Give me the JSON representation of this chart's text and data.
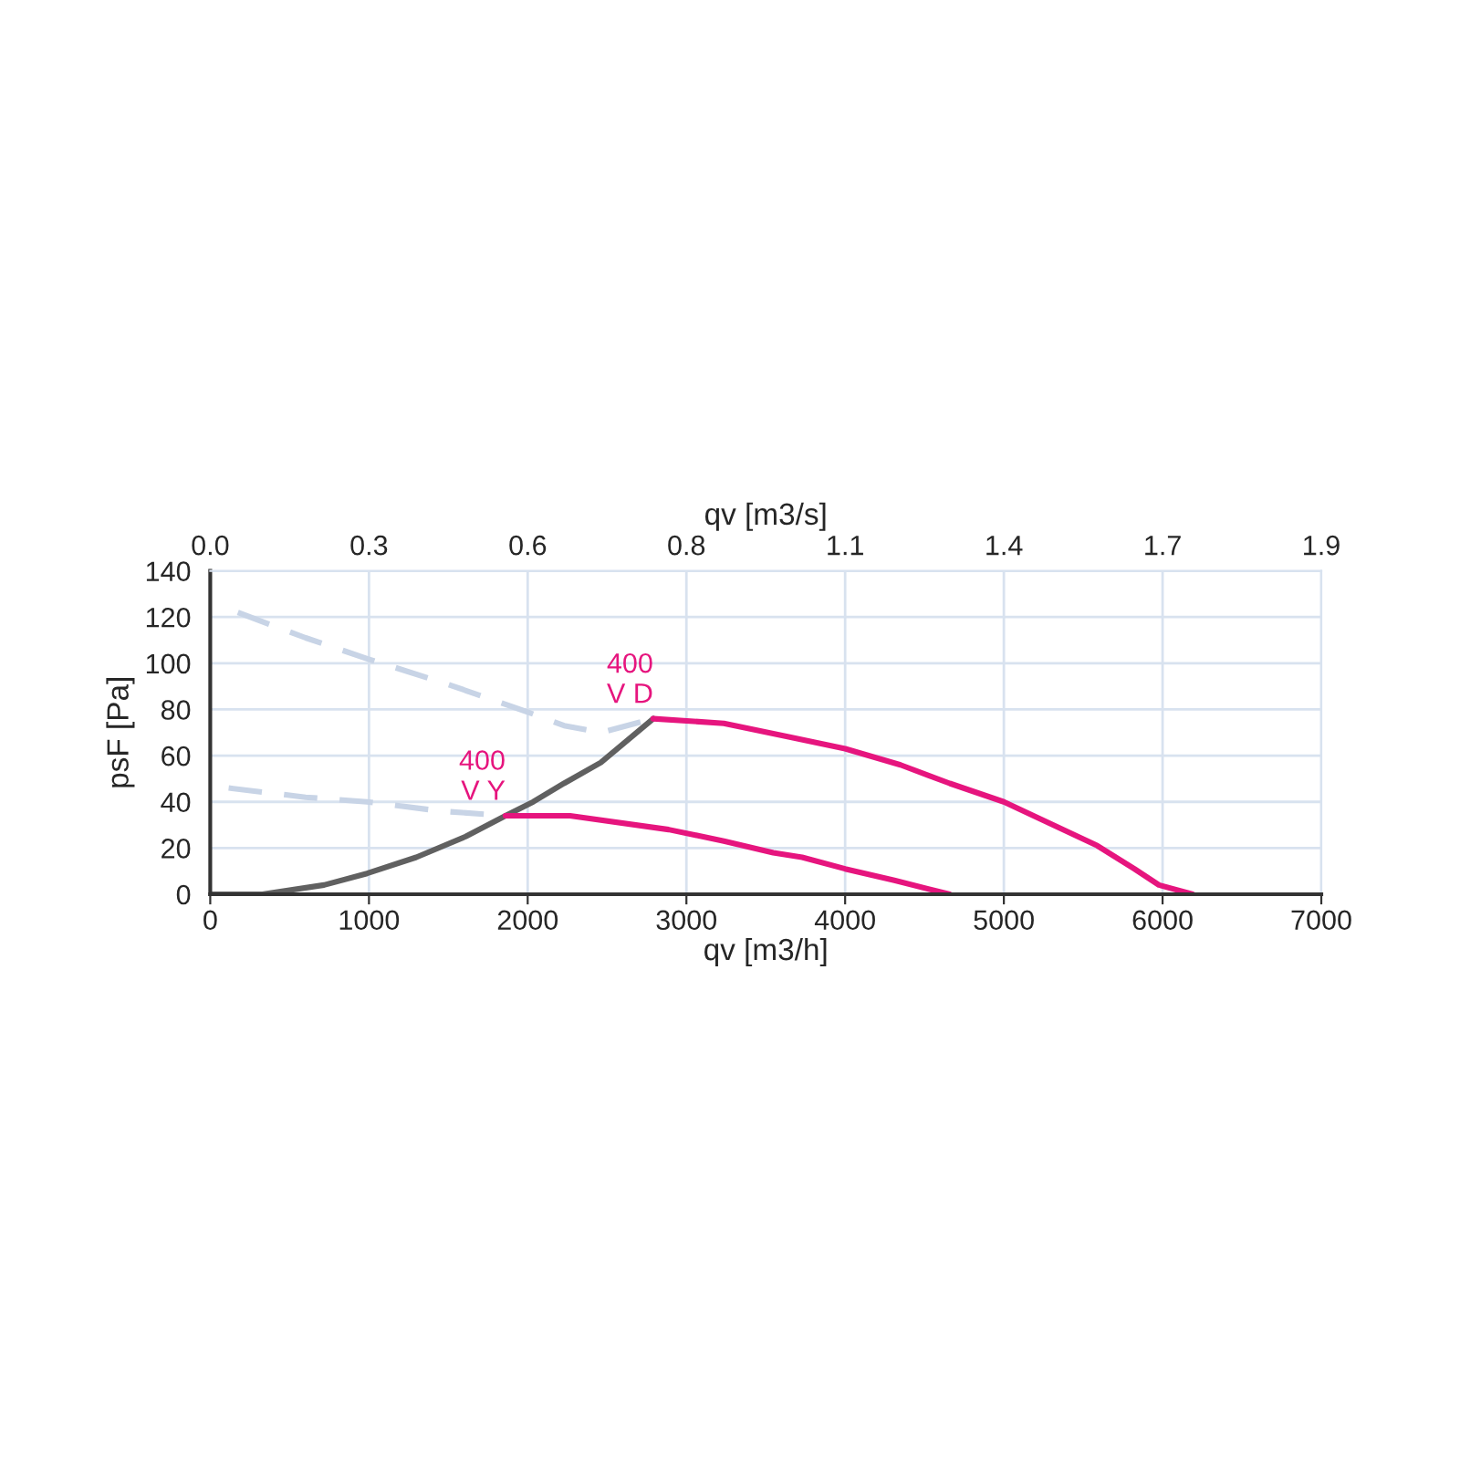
{
  "chart_data": {
    "type": "line",
    "xlabel": "qv [m3/h]",
    "ylabel": "psF [Pa]",
    "x2label": "qv [m3/s]",
    "xlim": [
      0,
      7000
    ],
    "xticks": [
      0,
      1000,
      2000,
      3000,
      4000,
      5000,
      6000,
      7000
    ],
    "x2lim": [
      0,
      1.9444
    ],
    "x2ticks": [
      {
        "value": 0,
        "label": "0.0"
      },
      {
        "value": 0.2778,
        "label": "0.3"
      },
      {
        "value": 0.5556,
        "label": "0.6"
      },
      {
        "value": 0.8333,
        "label": "0.8"
      },
      {
        "value": 1.1111,
        "label": "1.1"
      },
      {
        "value": 1.3889,
        "label": "1.4"
      },
      {
        "value": 1.6667,
        "label": "1.7"
      },
      {
        "value": 1.9444,
        "label": "1.9"
      }
    ],
    "ylim": [
      0,
      140
    ],
    "yticks": [
      0,
      20,
      40,
      60,
      80,
      100,
      120,
      140
    ],
    "grid": true,
    "legend": false,
    "series": [
      {
        "color": "#c8d4e6",
        "line_style": "dashed",
        "x": [
          174,
          601,
          988,
          1492,
          1996,
          2229,
          2461,
          2791
        ],
        "values": [
          122,
          111,
          102,
          91,
          79,
          73,
          70,
          76
        ]
      },
      {
        "color": "#c8d4e6",
        "line_style": "dashed",
        "x": [
          116,
          601,
          988,
          1453,
          1860
        ],
        "values": [
          46,
          42,
          40,
          36,
          34
        ]
      },
      {
        "color": "#606060",
        "line_style": "solid",
        "x": [
          0,
          329,
          717,
          988,
          1298,
          1609,
          1860,
          2035,
          2229,
          2461,
          2791
        ],
        "values": [
          0,
          0,
          4,
          9,
          16,
          25,
          34,
          40,
          48,
          57,
          76
        ]
      },
      {
        "color": "#e6157e",
        "line_style": "solid",
        "x": [
          2791,
          3236,
          3651,
          4000,
          4349,
          4659,
          5000,
          5279,
          5589,
          5822,
          5977,
          6190
        ],
        "values": [
          76,
          74,
          68,
          63,
          56,
          48,
          40,
          31,
          21,
          11,
          4,
          0
        ]
      },
      {
        "color": "#e6157e",
        "line_style": "solid",
        "x": [
          1860,
          2267,
          2888,
          3236,
          3547,
          3729,
          4000,
          4310,
          4659
        ],
        "values": [
          34,
          34,
          28,
          23,
          18,
          16,
          11,
          6,
          0
        ]
      }
    ],
    "annotations": [
      {
        "text": "400\nV D",
        "x": 2791,
        "y": 76
      },
      {
        "text": "400\nV Y",
        "x": 1860,
        "y": 34
      }
    ]
  }
}
